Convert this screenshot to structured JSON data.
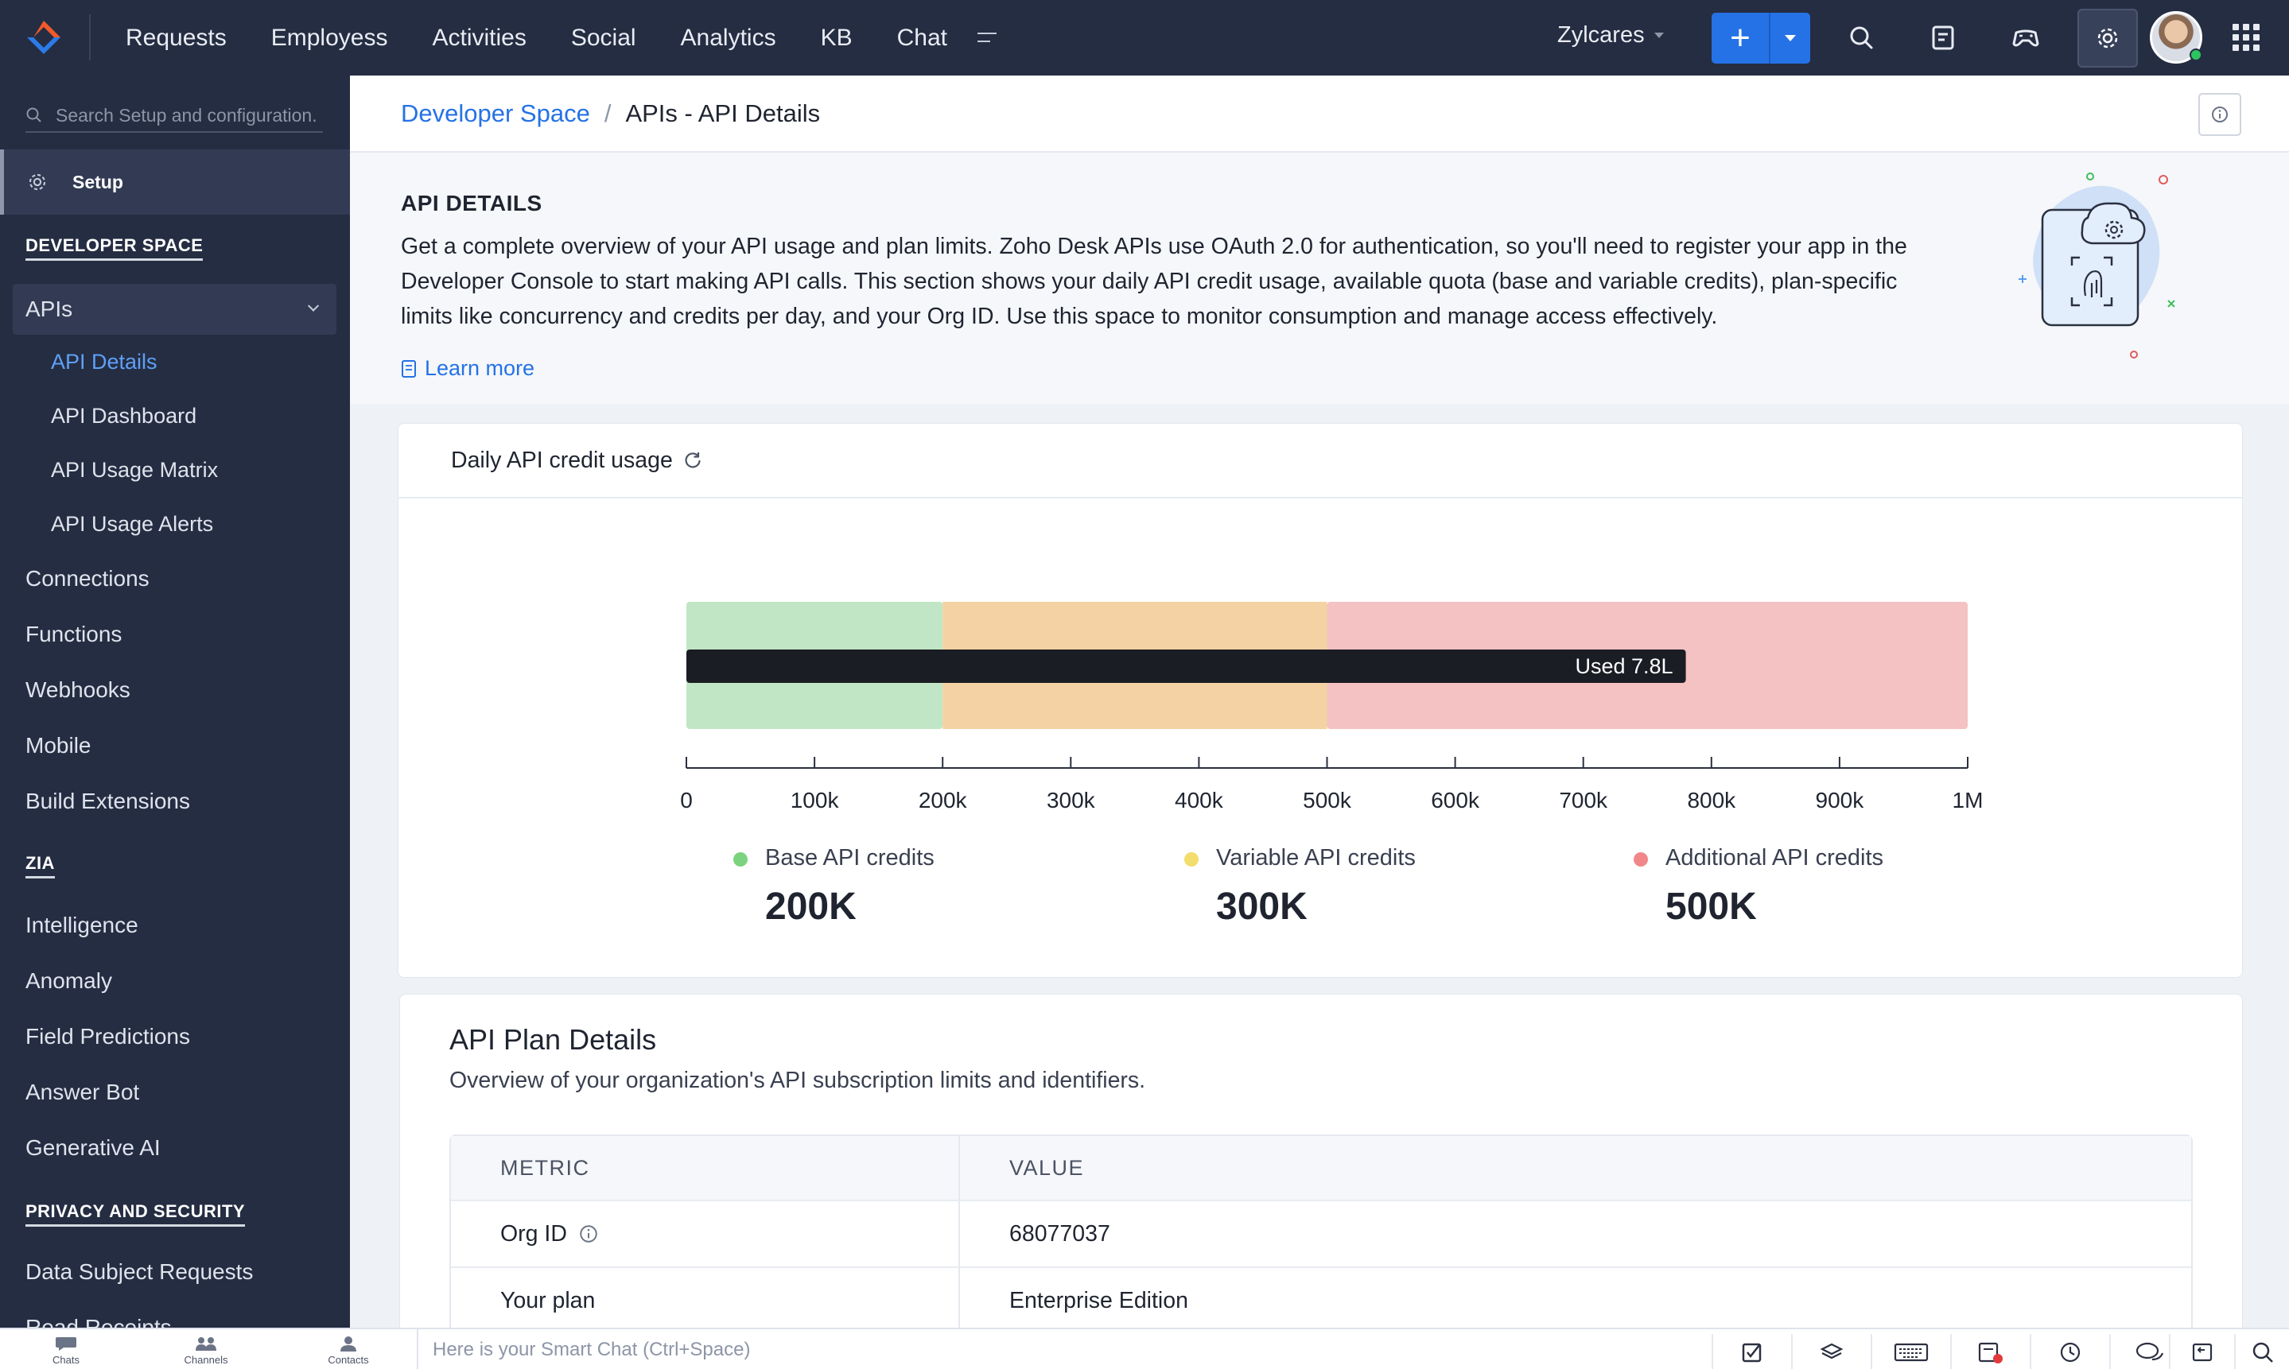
{
  "topbar": {
    "nav": [
      "Requests",
      "Employess",
      "Activities",
      "Social",
      "Analytics",
      "KB",
      "Chat"
    ],
    "org_name": "Zylcares",
    "icons": [
      "search-icon",
      "compose-icon",
      "gamepad-icon",
      "gear-icon",
      "apps-grid-icon"
    ]
  },
  "sidebar": {
    "search_placeholder": "Search Setup and configuration.",
    "setup_label": "Setup",
    "sections": {
      "developer_space": "DEVELOPER SPACE",
      "zia": "ZIA",
      "privacy": "PRIVACY AND SECURITY"
    },
    "apis_label": "APIs",
    "api_items": [
      "API Details",
      "API Dashboard",
      "API Usage Matrix",
      "API Usage Alerts"
    ],
    "dev_items": [
      "Connections",
      "Functions",
      "Webhooks",
      "Mobile",
      "Build Extensions"
    ],
    "zia_items": [
      "Intelligence",
      "Anomaly",
      "Field Predictions",
      "Answer Bot",
      "Generative AI"
    ],
    "privacy_items": [
      "Data Subject Requests",
      "Read Receipts"
    ]
  },
  "breadcrumb": {
    "parent": "Developer Space",
    "separator": "/",
    "current": "APIs - API Details"
  },
  "intro": {
    "title": "API DETAILS",
    "body": "Get a complete overview of your API usage and plan limits. Zoho Desk APIs use OAuth 2.0 for authentication, so you'll need to register your app in the Developer Console to start making API calls. This section shows your daily API credit usage, available quota (base and variable credits), plan-specific limits like concurrency and credits per day, and your Org ID. Use this space to monitor consumption and manage access effectively.",
    "learn_more": "Learn more"
  },
  "usage_card": {
    "title": "Daily API credit usage"
  },
  "chart_data": {
    "type": "bullet",
    "xlim": [
      0,
      1000000
    ],
    "ticks": [
      "0",
      "100k",
      "200k",
      "300k",
      "400k",
      "500k",
      "600k",
      "700k",
      "800k",
      "900k",
      "1M"
    ],
    "tick_values": [
      0,
      100000,
      200000,
      300000,
      400000,
      500000,
      600000,
      700000,
      800000,
      900000,
      1000000
    ],
    "bands": [
      {
        "name": "Base API credits",
        "from": 0,
        "to": 200000,
        "color": "#c1e6c5",
        "legend_color": "#7cd37f",
        "display": "200K"
      },
      {
        "name": "Variable API credits",
        "from": 200000,
        "to": 500000,
        "color": "#f4d2a3",
        "legend_color": "#f3dd6c",
        "display": "300K"
      },
      {
        "name": "Additional API credits",
        "from": 500000,
        "to": 1000000,
        "color": "#f4c2c2",
        "legend_color": "#f2878a",
        "display": "500K"
      }
    ],
    "used": {
      "value": 780000,
      "label": "Used 7.8L",
      "color": "#1b1d24"
    }
  },
  "plan_card": {
    "title": "API Plan Details",
    "description": "Overview of your organization's API subscription limits and identifiers.",
    "columns": [
      "METRIC",
      "VALUE"
    ],
    "rows": [
      {
        "metric": "Org ID",
        "value": "68077037"
      },
      {
        "metric": "Your plan",
        "value": "Enterprise Edition"
      }
    ]
  },
  "bottombar": {
    "tabs": [
      "Chats",
      "Channels",
      "Contacts"
    ],
    "smart_chat_placeholder": "Here is your Smart Chat (Ctrl+Space)"
  }
}
